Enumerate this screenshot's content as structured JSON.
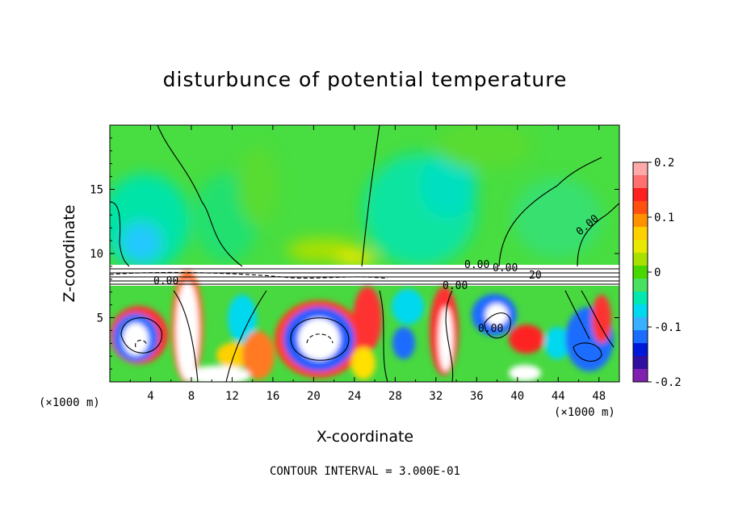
{
  "title": "disturbunce of potential temperature",
  "footer_note": "CONTOUR INTERVAL = 3.000E-01",
  "x_unit_left": "(×1000 m)",
  "x_unit_right": "(×1000 m)",
  "chart_data": {
    "type": "heatmap",
    "title": "disturbunce of potential temperature",
    "xlabel": "X-coordinate",
    "ylabel": "Z-coordinate",
    "x_unit": "(×1000 m)",
    "xlim": [
      0,
      50
    ],
    "ylim": [
      0,
      20
    ],
    "x_ticks": [
      4,
      8,
      12,
      16,
      20,
      24,
      28,
      32,
      36,
      40,
      44,
      48
    ],
    "y_ticks": [
      5,
      10,
      15
    ],
    "colorbar": {
      "range": [
        -0.2,
        0.2
      ],
      "tick_values": [
        0.2,
        0.1,
        0,
        -0.1,
        -0.2
      ],
      "tick_labels": [
        "0.2",
        "0.1",
        "0",
        "-0.1",
        "-0.2"
      ],
      "colors": [
        "#ffaaaa",
        "#ff7070",
        "#ff2020",
        "#ff5010",
        "#ff9000",
        "#ffd000",
        "#e8e800",
        "#a8e000",
        "#48d800",
        "#48e060",
        "#00e8b0",
        "#00d8f0",
        "#38b0ff",
        "#1a6cff",
        "#0018d8",
        "#3010a0",
        "#8020b0"
      ]
    },
    "contour_labels": [
      "0.00",
      "0.00",
      "0.00",
      "0.00",
      "0.00",
      "0.00",
      "20"
    ],
    "contour_interval": "3.000E-01"
  }
}
